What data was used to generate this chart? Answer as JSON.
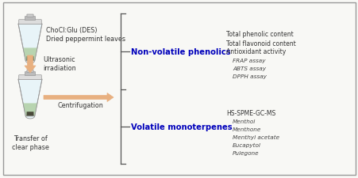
{
  "bg_color": "#f8f8f5",
  "border_color": "#999999",
  "tube1_label1": "ChoCl:Glu (DES)",
  "tube1_label2": "Dried peppermint leaves",
  "arrow_down_label": "Ultrasonic\nirradiation",
  "arrow_right_label": "Centrifugation",
  "transfer_label": "Transfer of\nclear phase",
  "nonvolatile_text": "Non-volatile phenolics",
  "nonvolatile_color": "#0000bb",
  "nonvolatile_items": [
    "Total phenolic content",
    "Total flavonoid content",
    "Antioxidant activity"
  ],
  "nonvolatile_italic_items": [
    "FRAP assay",
    "ABTS assay",
    "DPPH assay"
  ],
  "volatile_text": "Volatile monoterpenes",
  "volatile_color": "#0000bb",
  "volatile_items": [
    "HS-SPME-GC-MS"
  ],
  "volatile_italic_items": [
    "Menthol",
    "Menthone",
    "Menthyl acetate",
    "Eucapytol",
    "Pulegone"
  ],
  "arrow_fill_color": "#e8b080",
  "arrow_outline_color": "#c89060",
  "font_size_label": 5.8,
  "font_size_bold": 7.2,
  "font_size_item": 5.5,
  "font_size_italic": 5.2
}
